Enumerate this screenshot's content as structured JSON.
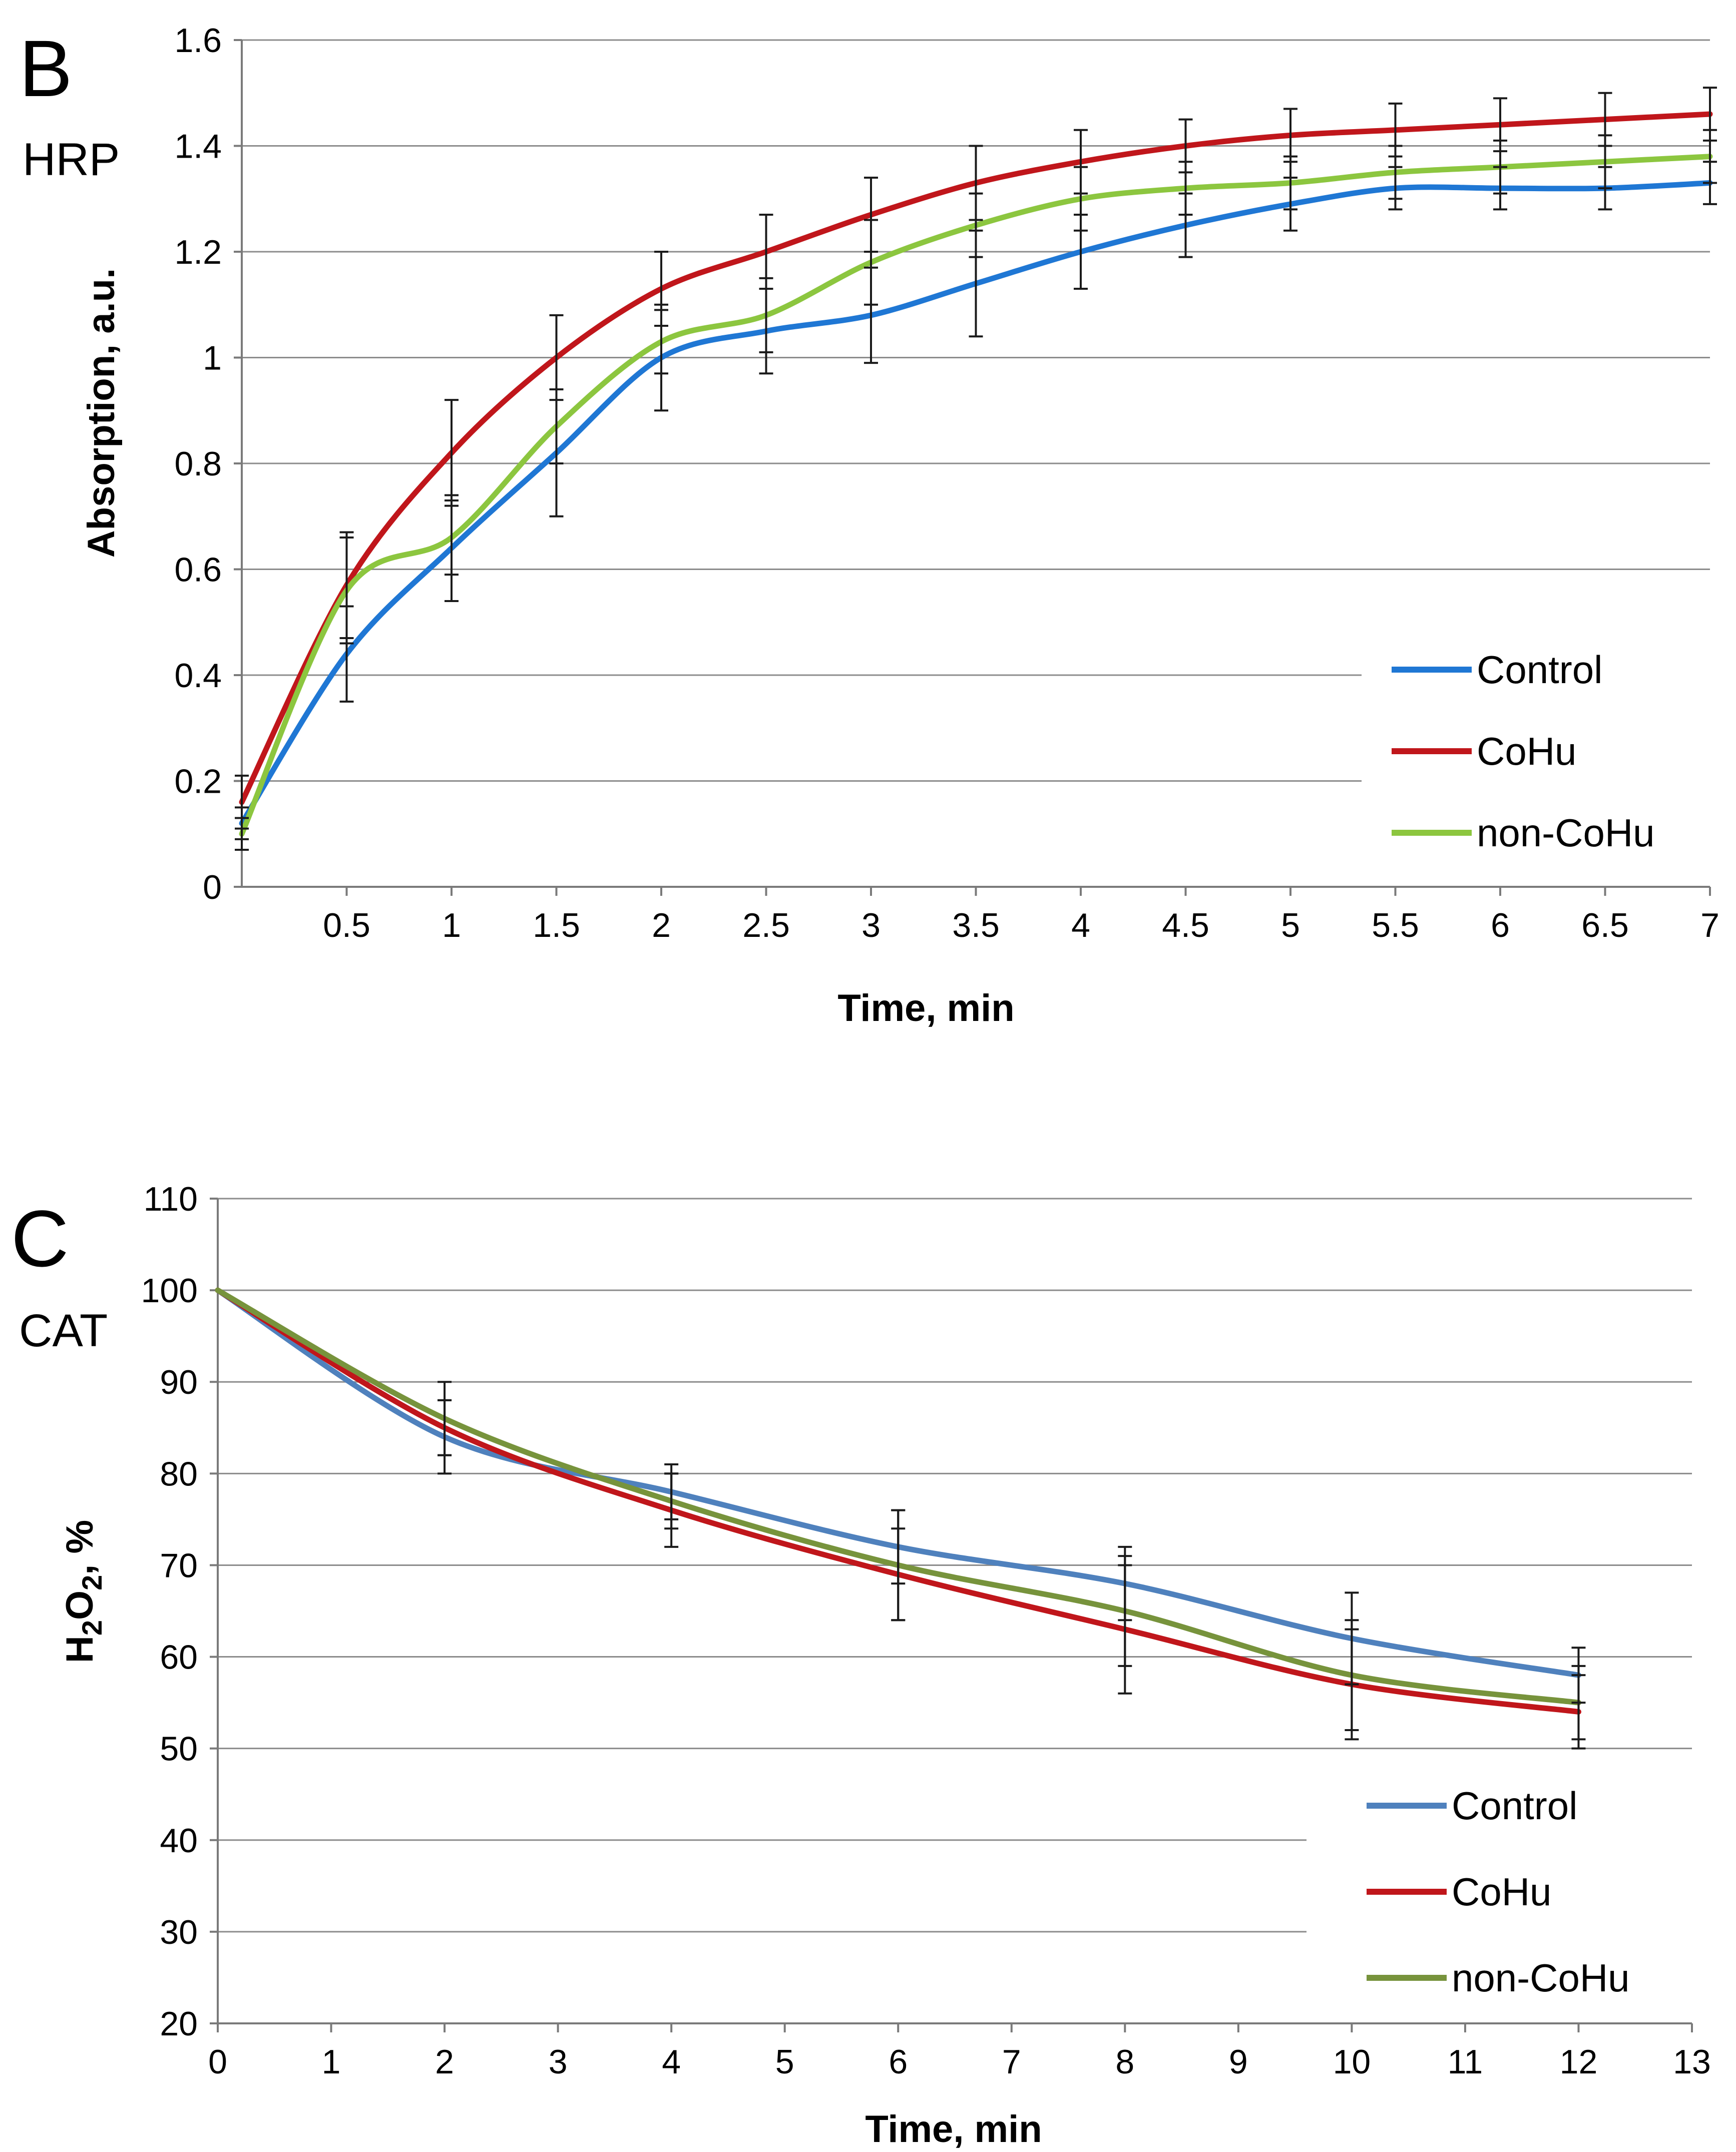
{
  "chart_data": [
    {
      "type": "line",
      "panel": "B",
      "enzyme": "HRP",
      "xlabel": "Time, min",
      "ylabel": "Absorption, a.u.",
      "x": [
        0,
        0.5,
        1,
        1.5,
        2,
        2.5,
        3,
        3.5,
        4,
        4.5,
        5,
        5.5,
        6,
        6.5,
        7
      ],
      "xticks": [
        "0.5",
        "1",
        "1.5",
        "2",
        "2.5",
        "3",
        "3.5",
        "4",
        "4.5",
        "5",
        "5.5",
        "6",
        "6.5",
        "7"
      ],
      "yticks": [
        "0",
        "0.2",
        "0.4",
        "0.6",
        "0.8",
        "1",
        "1.2",
        "1.4",
        "1.6"
      ],
      "xlim": [
        0,
        7
      ],
      "ylim": [
        0,
        1.6
      ],
      "legend": "bottom-right",
      "series": [
        {
          "name": "Control",
          "color": "#1f77d4",
          "values": [
            0.12,
            0.44,
            0.64,
            0.82,
            1.0,
            1.05,
            1.08,
            1.14,
            1.2,
            1.25,
            1.29,
            1.32,
            1.32,
            1.32,
            1.33
          ],
          "errors": [
            0.03,
            0.09,
            0.1,
            0.12,
            0.1,
            0.08,
            0.09,
            0.1,
            0.07,
            0.06,
            0.05,
            0.04,
            0.04,
            0.04,
            0.04
          ]
        },
        {
          "name": "CoHu",
          "color": "#c0161b",
          "values": [
            0.16,
            0.57,
            0.82,
            1.0,
            1.13,
            1.2,
            1.27,
            1.33,
            1.37,
            1.4,
            1.42,
            1.43,
            1.44,
            1.45,
            1.46
          ],
          "errors": [
            0.05,
            0.1,
            0.1,
            0.08,
            0.07,
            0.07,
            0.07,
            0.07,
            0.06,
            0.05,
            0.05,
            0.05,
            0.05,
            0.05,
            0.05
          ]
        },
        {
          "name": "non-CoHu",
          "color": "#8cc63f",
          "values": [
            0.1,
            0.56,
            0.66,
            0.87,
            1.03,
            1.08,
            1.18,
            1.25,
            1.3,
            1.32,
            1.33,
            1.35,
            1.36,
            1.37,
            1.38
          ],
          "errors": [
            0.03,
            0.1,
            0.07,
            0.07,
            0.06,
            0.07,
            0.08,
            0.06,
            0.06,
            0.05,
            0.05,
            0.05,
            0.05,
            0.05,
            0.05
          ]
        }
      ]
    },
    {
      "type": "line",
      "panel": "C",
      "enzyme": "CAT",
      "xlabel": "Time, min",
      "ylabel_main": "H",
      "ylabel_sub": "2",
      "ylabel_o": "O",
      "ylabel_tail": ", %",
      "x": [
        0,
        2,
        4,
        6,
        8,
        10,
        12
      ],
      "xticks": [
        "0",
        "1",
        "2",
        "3",
        "4",
        "5",
        "6",
        "7",
        "8",
        "9",
        "10",
        "11",
        "12",
        "13"
      ],
      "yticks": [
        "20",
        "30",
        "40",
        "50",
        "60",
        "70",
        "80",
        "90",
        "100",
        "110"
      ],
      "xlim": [
        0,
        13
      ],
      "ylim": [
        20,
        110
      ],
      "legend": "bottom-right",
      "series": [
        {
          "name": "Control",
          "color": "#4f81bd",
          "values": [
            100,
            84,
            78,
            72,
            68,
            62,
            58
          ],
          "errors": [
            0,
            4,
            3,
            4,
            4,
            5,
            3
          ]
        },
        {
          "name": "CoHu",
          "color": "#c0161b",
          "values": [
            100,
            85,
            76,
            69,
            63,
            57,
            54
          ],
          "errors": [
            0,
            3,
            4,
            5,
            7,
            6,
            4
          ]
        },
        {
          "name": "non-CoHu",
          "color": "#77933c",
          "values": [
            100,
            86,
            77,
            70,
            65,
            58,
            55
          ],
          "errors": [
            0,
            4,
            3,
            6,
            6,
            6,
            4
          ]
        }
      ]
    }
  ],
  "panels": {
    "b": {
      "letter": "B",
      "enzyme": "HRP"
    },
    "c": {
      "letter": "C",
      "enzyme": "CAT"
    }
  }
}
